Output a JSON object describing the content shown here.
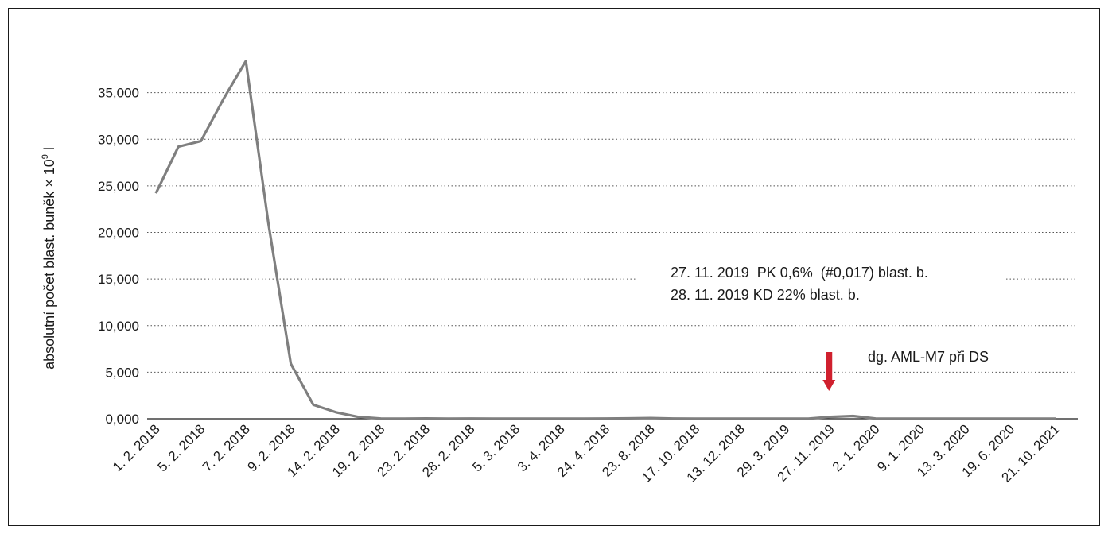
{
  "chart_data": {
    "type": "line",
    "title": "",
    "xlabel": "",
    "ylabel": "absolutní počet blast. buněk × 10",
    "ylabel_superscript": "9",
    "ylabel_suffix": " l",
    "ylim": [
      0,
      40
    ],
    "yticks": [
      "0,000",
      "5,000",
      "10,000",
      "15,000",
      "20,000",
      "25,000",
      "30,000",
      "35,000"
    ],
    "grid": "horizontal-dotted",
    "legend": "none",
    "categories": [
      "1. 2. 2018",
      "5. 2. 2018",
      "7. 2. 2018",
      "9. 2. 2018",
      "14. 2. 2018",
      "19. 2. 2018",
      "23. 2. 2018",
      "28. 2. 2018",
      "5. 3. 2018",
      "3. 4. 2018",
      "24. 4. 2018",
      "23. 8. 2018",
      "17. 10. 2018",
      "13. 12. 2018",
      "29. 3. 2019",
      "27. 11. 2019",
      "2. 1. 2020",
      "9. 1. 2020",
      "13. 3. 2020",
      "19. 6. 2020",
      "21. 10. 2021"
    ],
    "series": [
      {
        "color": "#7f7f7f",
        "x": [
          0,
          0.5,
          1,
          1.5,
          2,
          2.5,
          3,
          3.5,
          4,
          4.5,
          5,
          5.5,
          6,
          6.5,
          7,
          7.5,
          8,
          8.5,
          9,
          9.5,
          10,
          10.5,
          11,
          11.5,
          12,
          12.5,
          13,
          13.5,
          14,
          14.5,
          15,
          15.5,
          16,
          16.5,
          17,
          17.5,
          18,
          18.5,
          19,
          19.5,
          20
        ],
        "values": [
          24.2,
          29.2,
          29.8,
          34.3,
          38.4,
          21.0,
          5.9,
          1.5,
          0.7,
          0.2,
          0.02,
          0.01,
          0.03,
          0.01,
          0.02,
          0.01,
          0.01,
          0.01,
          0.01,
          0.01,
          0.02,
          0.05,
          0.08,
          0.02,
          0.01,
          0.01,
          0.01,
          0.01,
          0.01,
          0.01,
          0.2,
          0.3,
          0.02,
          0.01,
          0.01,
          0.01,
          0.01,
          0.01,
          0.01,
          0.01,
          0.01
        ]
      }
    ],
    "annotations": [
      {
        "text": "27. 11. 2019  PK 0,6%  (#0,017) blast. b."
      },
      {
        "text": "28. 11. 2019 KD 22% blast. b."
      },
      {
        "text": "dg. AML-M7 při DS"
      }
    ],
    "arrow_color": "#d0202e",
    "arrow_at_x": 15
  }
}
